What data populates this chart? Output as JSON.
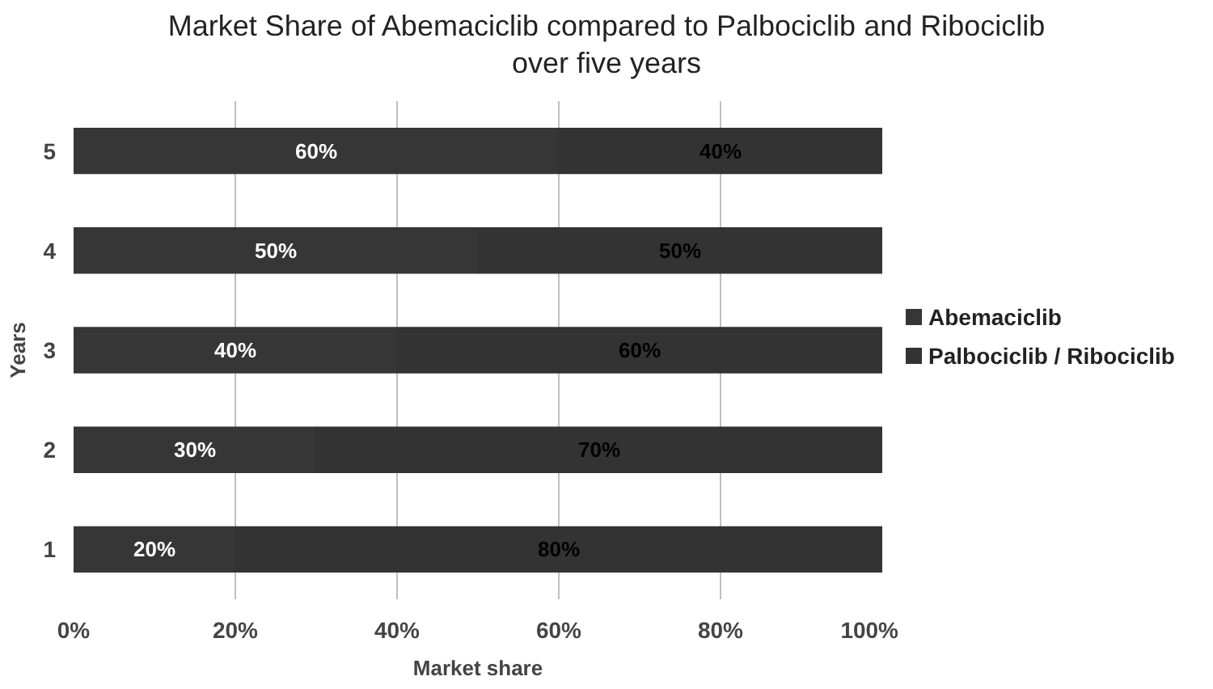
{
  "chart_data": {
    "type": "bar",
    "orientation": "horizontal",
    "stacked": true,
    "title": "Market Share of Abemaciclib compared to Palbociclib and Ribociclib\nover five years",
    "xlabel": "Market share",
    "ylabel": "Years",
    "categories": [
      "5",
      "4",
      "3",
      "2",
      "1"
    ],
    "series": [
      {
        "name": "Abemaciclib",
        "color": "#363636",
        "values": [
          60,
          50,
          40,
          30,
          20
        ],
        "value_labels": [
          "60%",
          "50%",
          "40%",
          "30%",
          "20%"
        ]
      },
      {
        "name": "Palbociclib / Ribociclib",
        "color": "#333333",
        "values": [
          40,
          50,
          60,
          70,
          80
        ],
        "value_labels": [
          "40%",
          "50%",
          "60%",
          "70%",
          "80%"
        ]
      }
    ],
    "xlim": [
      0,
      100
    ],
    "xticks": [
      {
        "value": 0,
        "label": "0%"
      },
      {
        "value": 20,
        "label": "20%"
      },
      {
        "value": 40,
        "label": "40%"
      },
      {
        "value": 60,
        "label": "60%"
      },
      {
        "value": 80,
        "label": "80%"
      },
      {
        "value": 100,
        "label": "100%"
      }
    ],
    "grid": "x",
    "legend": "right"
  }
}
